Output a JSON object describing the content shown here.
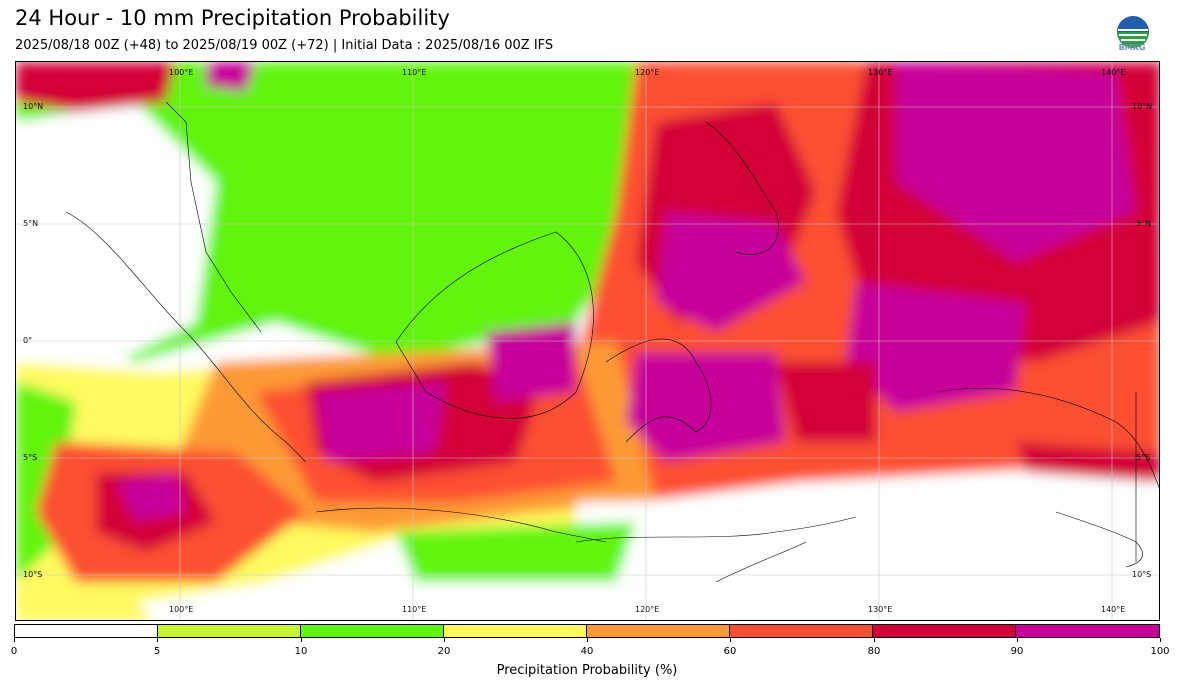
{
  "title": "24 Hour - 10 mm Precipitation Probability",
  "subtitle": "2025/08/18 00Z (+48) to 2025/08/19 00Z (+72) | Initial Data : 2025/08/16 00Z IFS",
  "logo_text": "BMKG",
  "map": {
    "lon_labels": [
      "100°E",
      "110°E",
      "120°E",
      "130°E",
      "140°E"
    ],
    "lat_labels": [
      "10°N",
      "5°N",
      "0°",
      "5°S",
      "10°S"
    ]
  },
  "colorbar": {
    "label": "Precipitation Probability (%)",
    "ticks": [
      "0",
      "5",
      "10",
      "20",
      "40",
      "60",
      "80",
      "90",
      "100"
    ],
    "colors": [
      "#ffffff",
      "#c6f536",
      "#62f40a",
      "#fefa5e",
      "#fd9a35",
      "#fd4f33",
      "#d30038",
      "#c7009a"
    ]
  }
}
